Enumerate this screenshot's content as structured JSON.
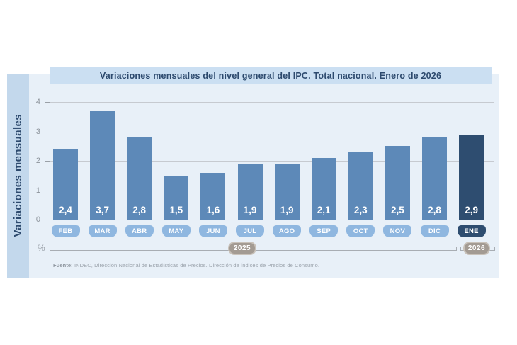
{
  "page": {
    "title_bar": "Variaciones mensuales del nivel general del IPC. Total nacional. Enero de 2026",
    "side_label": "Variaciones mensuales",
    "percent_symbol": "%",
    "source_label": "Fuente:",
    "source_text": " INDEC, Dirección Nacional de Estadísticas de Precios. Dirección de Índices de Precios de Consumo."
  },
  "chart_data": {
    "type": "bar",
    "title": "Variaciones mensuales del nivel general del IPC. Total nacional. Enero de 2026",
    "ylabel": "Variaciones mensuales",
    "unit": "%",
    "ylim": [
      0,
      4
    ],
    "yticks": [
      0,
      1,
      2,
      3,
      4
    ],
    "grid": true,
    "categories": [
      "FEB",
      "MAR",
      "ABR",
      "MAY",
      "JUN",
      "JUL",
      "AGO",
      "SEP",
      "OCT",
      "NOV",
      "DIC",
      "ENE"
    ],
    "values": [
      2.4,
      3.7,
      2.8,
      1.5,
      1.6,
      1.9,
      1.9,
      2.1,
      2.3,
      2.5,
      2.8,
      2.9
    ],
    "value_labels": [
      "2,4",
      "3,7",
      "2,8",
      "1,5",
      "1,6",
      "1,9",
      "1,9",
      "2,1",
      "2,3",
      "2,5",
      "2,8",
      "2,9"
    ],
    "highlight_index": 11,
    "year_groups": [
      {
        "label": "2025",
        "months": "FEB–DIC"
      },
      {
        "label": "2026",
        "months": "ENE"
      }
    ],
    "colors": {
      "bar": "#5d89b8",
      "bar_highlight": "#2e4d70",
      "month_pill": "#8fb7e0",
      "month_pill_highlight": "#2e4d70",
      "panel_bg": "#e8f0f8",
      "title_bg": "#cbdff2",
      "band_bg": "#c3d8ec",
      "heading_text": "#2d4a6e",
      "gridline": "#c6cad0",
      "axis_text": "#8d949c",
      "year_pill": "#a39b93"
    },
    "legend": null,
    "annotations": []
  }
}
